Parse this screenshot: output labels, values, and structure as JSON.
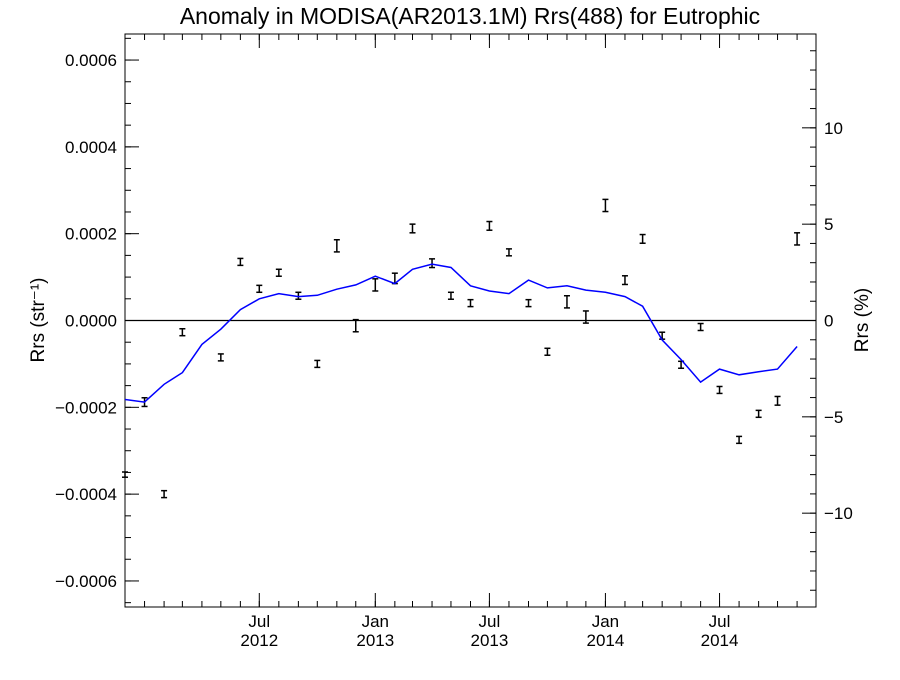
{
  "chart_data": {
    "type": "scatter",
    "title": "Anomaly in MODISA(AR2013.1M) Rrs(488) for Eutrophic",
    "ylabel": "Rrs (str⁻¹)",
    "y2label": "Rrs (%)",
    "xlabel": "",
    "xlim": [
      "2011-12-01",
      "2014-12-01"
    ],
    "ylim": [
      -0.00066,
      0.00066
    ],
    "y2lim": [
      -14.87,
      14.87
    ],
    "x_ticks": [
      {
        "date": "2012-07-01",
        "line1": "Jul",
        "line2": "2012"
      },
      {
        "date": "2013-01-01",
        "line1": "Jan",
        "line2": "2013"
      },
      {
        "date": "2013-07-01",
        "line1": "Jul",
        "line2": "2013"
      },
      {
        "date": "2014-01-01",
        "line1": "Jan",
        "line2": "2014"
      },
      {
        "date": "2014-07-01",
        "line1": "Jul",
        "line2": "2014"
      }
    ],
    "y_ticks": [
      {
        "value": 0.0006,
        "label": "0.0006"
      },
      {
        "value": 0.0004,
        "label": "0.0004"
      },
      {
        "value": 0.0002,
        "label": "0.0002"
      },
      {
        "value": 0.0,
        "label": "0.0000"
      },
      {
        "value": -0.0002,
        "label": "−0.0002"
      },
      {
        "value": -0.0004,
        "label": "−0.0004"
      },
      {
        "value": -0.0006,
        "label": "−0.0006"
      }
    ],
    "y2_ticks": [
      {
        "value": 10,
        "label": "10"
      },
      {
        "value": 5,
        "label": "5"
      },
      {
        "value": 0,
        "label": "0"
      },
      {
        "value": -5,
        "label": "−5"
      },
      {
        "value": -10,
        "label": "−10"
      }
    ],
    "zero_line": true,
    "grid": false,
    "series": [
      {
        "kind": "errorbar",
        "color": "#000000",
        "points": [
          {
            "x": "2011-12-01",
            "y": -0.000355,
            "err": 6e-06
          },
          {
            "x": "2012-01-01",
            "y": -0.000188,
            "err": 1e-05
          },
          {
            "x": "2012-02-01",
            "y": -0.0004,
            "err": 8e-06
          },
          {
            "x": "2012-03-01",
            "y": -2.7e-05,
            "err": 8e-06
          },
          {
            "x": "2012-05-01",
            "y": -8.5e-05,
            "err": 8e-06
          },
          {
            "x": "2012-06-01",
            "y": 0.000135,
            "err": 8e-06
          },
          {
            "x": "2012-07-01",
            "y": 7.3e-05,
            "err": 8e-06
          },
          {
            "x": "2012-08-01",
            "y": 0.00011,
            "err": 8e-06
          },
          {
            "x": "2012-09-01",
            "y": 5.7e-05,
            "err": 8e-06
          },
          {
            "x": "2012-10-01",
            "y": -0.0001,
            "err": 8e-06
          },
          {
            "x": "2012-11-01",
            "y": 0.000172,
            "err": 1.4e-05
          },
          {
            "x": "2012-12-01",
            "y": -1.2e-05,
            "err": 1.4e-05
          },
          {
            "x": "2013-01-01",
            "y": 8.2e-05,
            "err": 1.4e-05
          },
          {
            "x": "2013-02-01",
            "y": 9.7e-05,
            "err": 1.2e-05
          },
          {
            "x": "2013-03-01",
            "y": 0.000212,
            "err": 1e-05
          },
          {
            "x": "2013-04-01",
            "y": 0.000132,
            "err": 1e-05
          },
          {
            "x": "2013-05-01",
            "y": 5.7e-05,
            "err": 8e-06
          },
          {
            "x": "2013-06-01",
            "y": 4e-05,
            "err": 8e-06
          },
          {
            "x": "2013-07-01",
            "y": 0.000218,
            "err": 1e-05
          },
          {
            "x": "2013-08-01",
            "y": 0.000157,
            "err": 8e-06
          },
          {
            "x": "2013-09-01",
            "y": 4e-05,
            "err": 8e-06
          },
          {
            "x": "2013-10-01",
            "y": -7.2e-05,
            "err": 8e-06
          },
          {
            "x": "2013-11-01",
            "y": 4.3e-05,
            "err": 1.4e-05
          },
          {
            "x": "2013-12-01",
            "y": 8e-06,
            "err": 1.4e-05
          },
          {
            "x": "2014-01-01",
            "y": 0.000265,
            "err": 1.4e-05
          },
          {
            "x": "2014-02-01",
            "y": 9.3e-05,
            "err": 1e-05
          },
          {
            "x": "2014-03-01",
            "y": 0.000188,
            "err": 1e-05
          },
          {
            "x": "2014-04-01",
            "y": -3.5e-05,
            "err": 8e-06
          },
          {
            "x": "2014-05-01",
            "y": -0.000102,
            "err": 8e-06
          },
          {
            "x": "2014-06-01",
            "y": -1.5e-05,
            "err": 8e-06
          },
          {
            "x": "2014-07-01",
            "y": -0.00016,
            "err": 8e-06
          },
          {
            "x": "2014-08-01",
            "y": -0.000275,
            "err": 8e-06
          },
          {
            "x": "2014-09-01",
            "y": -0.000215,
            "err": 8e-06
          },
          {
            "x": "2014-10-01",
            "y": -0.000185,
            "err": 1e-05
          },
          {
            "x": "2014-11-01",
            "y": 0.000188,
            "err": 1.4e-05
          }
        ]
      },
      {
        "kind": "line",
        "color": "#0000ff",
        "points": [
          {
            "x": "2011-12-01",
            "y": -0.000182
          },
          {
            "x": "2012-01-01",
            "y": -0.000188
          },
          {
            "x": "2012-02-01",
            "y": -0.000147
          },
          {
            "x": "2012-03-01",
            "y": -0.00012
          },
          {
            "x": "2012-04-01",
            "y": -5.5e-05
          },
          {
            "x": "2012-05-01",
            "y": -2e-05
          },
          {
            "x": "2012-06-01",
            "y": 2.5e-05
          },
          {
            "x": "2012-07-01",
            "y": 5e-05
          },
          {
            "x": "2012-08-01",
            "y": 6.2e-05
          },
          {
            "x": "2012-09-01",
            "y": 5.5e-05
          },
          {
            "x": "2012-10-01",
            "y": 5.8e-05
          },
          {
            "x": "2012-11-01",
            "y": 7.2e-05
          },
          {
            "x": "2012-12-01",
            "y": 8.2e-05
          },
          {
            "x": "2013-01-01",
            "y": 0.000102
          },
          {
            "x": "2013-02-01",
            "y": 8.5e-05
          },
          {
            "x": "2013-03-01",
            "y": 0.000118
          },
          {
            "x": "2013-04-01",
            "y": 0.00013
          },
          {
            "x": "2013-05-01",
            "y": 0.000122
          },
          {
            "x": "2013-06-01",
            "y": 8e-05
          },
          {
            "x": "2013-07-01",
            "y": 6.8e-05
          },
          {
            "x": "2013-08-01",
            "y": 6.2e-05
          },
          {
            "x": "2013-09-01",
            "y": 9.3e-05
          },
          {
            "x": "2013-10-01",
            "y": 7.5e-05
          },
          {
            "x": "2013-11-01",
            "y": 8e-05
          },
          {
            "x": "2013-12-01",
            "y": 7e-05
          },
          {
            "x": "2014-01-01",
            "y": 6.5e-05
          },
          {
            "x": "2014-02-01",
            "y": 5.5e-05
          },
          {
            "x": "2014-03-01",
            "y": 3.3e-05
          },
          {
            "x": "2014-04-01",
            "y": -4.5e-05
          },
          {
            "x": "2014-05-01",
            "y": -9e-05
          },
          {
            "x": "2014-06-01",
            "y": -0.000142
          },
          {
            "x": "2014-07-01",
            "y": -0.000112
          },
          {
            "x": "2014-08-01",
            "y": -0.000125
          },
          {
            "x": "2014-09-01",
            "y": -0.000118
          },
          {
            "x": "2014-10-01",
            "y": -0.000112
          },
          {
            "x": "2014-11-01",
            "y": -6e-05
          }
        ]
      }
    ]
  }
}
